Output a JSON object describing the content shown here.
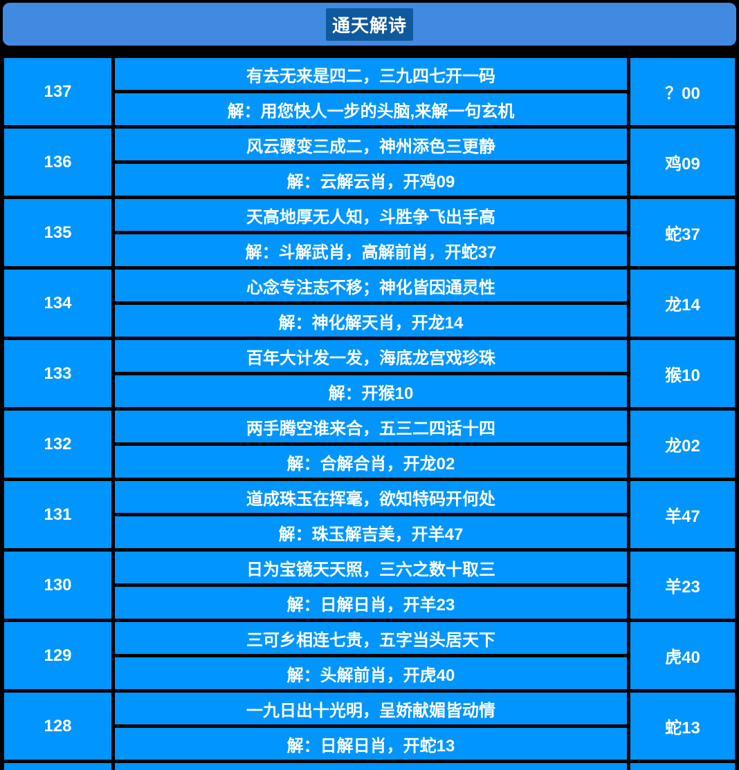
{
  "page": {
    "background_color": "#000000"
  },
  "header": {
    "title": "通天解诗",
    "bar_color": "#4289e2",
    "title_highlight_color": "#0f5a9e"
  },
  "table": {
    "cell_color": "#0095ff",
    "text_color": "#ffffff",
    "rows": [
      {
        "issue": "137",
        "poem": "有去无来是四二，三九四七开一码",
        "answer": "解：用您快人一步的头脑,来解一句玄机",
        "result": "？00"
      },
      {
        "issue": "136",
        "poem": "风云骤变三成二，神州添色三更静",
        "answer": "解：云解云肖，开鸡09",
        "result": "鸡09"
      },
      {
        "issue": "135",
        "poem": "天高地厚无人知，斗胜争飞出手高",
        "answer": "解：斗解武肖，高解前肖，开蛇37",
        "result": "蛇37"
      },
      {
        "issue": "134",
        "poem": "心念专注志不移；神化皆因通灵性",
        "answer": "解：神化解天肖，开龙14",
        "result": "龙14"
      },
      {
        "issue": "133",
        "poem": "百年大计发一发，海底龙宫戏珍珠",
        "answer": "解：开猴10",
        "result": "猴10"
      },
      {
        "issue": "132",
        "poem": "两手腾空谁来合，五三二四话十四",
        "answer": "解：合解合肖，开龙02",
        "result": "龙02"
      },
      {
        "issue": "131",
        "poem": "道成珠玉在挥毫，欲知特码开何处",
        "answer": "解：珠玉解吉美，开羊47",
        "result": "羊47"
      },
      {
        "issue": "130",
        "poem": "日为宝镜天天照，三六之数十取三",
        "answer": "解：日解日肖，开羊23",
        "result": "羊23"
      },
      {
        "issue": "129",
        "poem": "三可乡相连七贵，五字当头居天下",
        "answer": "解：头解前肖，开虎40",
        "result": "虎40"
      },
      {
        "issue": "128",
        "poem": "一九日出十光明，呈娇献媚皆动情",
        "answer": "解：日解日肖，开蛇13",
        "result": "蛇13"
      }
    ]
  }
}
